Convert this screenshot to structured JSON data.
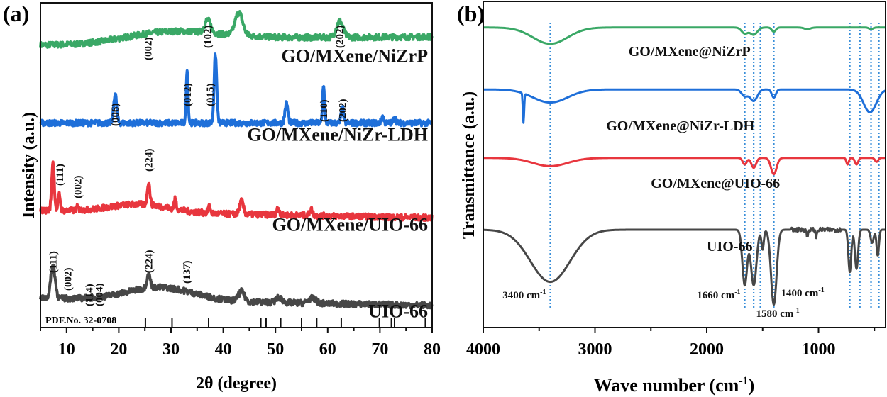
{
  "chart_data": [
    {
      "panel_label": "(a)",
      "type": "line",
      "title": "",
      "xlabel": "2θ (degree)",
      "ylabel": "Intensity (a.u.)",
      "xlim": [
        5,
        80
      ],
      "x_ticks": [
        10,
        20,
        30,
        40,
        50,
        60,
        70,
        80
      ],
      "grid": false,
      "reference": {
        "label": "PDF.No. 32-0708",
        "positions": [
          25.1,
          30.2,
          37.2,
          47.2,
          48.2,
          51.0,
          55.0,
          57.9,
          62.6,
          69.9,
          72.2,
          72.8,
          78.7
        ]
      },
      "series": [
        {
          "name": "GO/MXene/NiZrP",
          "color": "#3aa866",
          "baseline": 0.87,
          "peaks": [
            [
              37.0,
              0.04,
              0.8
            ],
            [
              43.0,
              0.07,
              1.0
            ],
            [
              62.3,
              0.05,
              0.9
            ]
          ],
          "hump": [
            [
              30,
              0.03,
              12
            ]
          ],
          "annotations": [
            {
              "x": 25.6,
              "text": "(002)"
            },
            {
              "x": 37.0,
              "text": "(102)"
            },
            {
              "x": 62.3,
              "text": "(202)"
            }
          ]
        },
        {
          "name": "GO/MXene/NiZr-LDH",
          "color": "#1e6fd9",
          "baseline": 0.63,
          "peaks": [
            [
              19.3,
              0.09,
              0.4
            ],
            [
              33.1,
              0.17,
              0.25
            ],
            [
              38.5,
              0.21,
              0.35
            ],
            [
              52.1,
              0.06,
              0.4
            ],
            [
              59.2,
              0.12,
              0.25
            ],
            [
              62.8,
              0.05,
              0.3
            ],
            [
              70.5,
              0.02,
              0.3
            ],
            [
              72.8,
              0.02,
              0.3
            ]
          ],
          "hump": [],
          "annotations": [
            {
              "x": 19.3,
              "text": "(006)"
            },
            {
              "x": 33.1,
              "text": "(012)"
            },
            {
              "x": 37.5,
              "text": "(015)"
            },
            {
              "x": 59.2,
              "text": "(110)"
            },
            {
              "x": 62.8,
              "text": "(202)"
            }
          ]
        },
        {
          "name": "GO/MXene/UIO-66",
          "color": "#e8363e",
          "baseline": 0.35,
          "peaks": [
            [
              7.4,
              0.15,
              0.35
            ],
            [
              8.6,
              0.05,
              0.3
            ],
            [
              12.1,
              0.01,
              0.3
            ],
            [
              25.7,
              0.07,
              0.35
            ],
            [
              30.8,
              0.03,
              0.3
            ],
            [
              37.3,
              0.02,
              0.3
            ],
            [
              43.5,
              0.04,
              0.5
            ],
            [
              50.5,
              0.02,
              0.4
            ],
            [
              56.8,
              0.02,
              0.4
            ]
          ],
          "hump": [
            [
              24,
              0.025,
              8
            ]
          ],
          "annotations": [
            {
              "x": 8.7,
              "text": "(111)"
            },
            {
              "x": 12.1,
              "text": "(002)"
            },
            {
              "x": 25.7,
              "text": "(224)"
            }
          ]
        },
        {
          "name": "UIO-66",
          "color": "#474747",
          "baseline": 0.08,
          "peaks": [
            [
              7.4,
              0.1,
              0.6
            ],
            [
              25.7,
              0.04,
              0.5
            ],
            [
              43.5,
              0.03,
              0.8
            ],
            [
              50.7,
              0.015,
              0.8
            ],
            [
              57.0,
              0.015,
              1.0
            ]
          ],
          "hump": [
            [
              28,
              0.04,
              9
            ]
          ],
          "annotations": [
            {
              "x": 7.4,
              "text": "(111)"
            },
            {
              "x": 10.2,
              "text": "(002)"
            },
            {
              "x": 14.3,
              "text": "(114)"
            },
            {
              "x": 16.2,
              "text": "(004)"
            },
            {
              "x": 25.7,
              "text": "(224)"
            },
            {
              "x": 33.0,
              "text": "(137)"
            }
          ]
        }
      ]
    },
    {
      "panel_label": "(b)",
      "type": "line",
      "title": "",
      "xlabel": "Wave number (cm",
      "xlabel_sup": "-1",
      "xlabel_end": ")",
      "ylabel": "Transmittance (a.u.)",
      "xlim": [
        4000,
        400
      ],
      "x_ticks": [
        4000,
        3000,
        2000,
        1000
      ],
      "x_minor_ticks": [
        3500,
        2500,
        1500,
        500
      ],
      "grid": false,
      "reference_lines": [
        3400,
        1660,
        1580,
        1520,
        1400,
        720,
        630,
        530,
        460
      ],
      "annotations": [
        {
          "x": 3400,
          "text": "3400 cm",
          "sup": "-1",
          "pos": "left"
        },
        {
          "x": 1660,
          "text": "1660 cm",
          "sup": "-1",
          "pos": "left"
        },
        {
          "x": 1580,
          "text": "1580 cm",
          "sup": "-1",
          "pos": "below"
        },
        {
          "x": 1400,
          "text": "1400 cm",
          "sup": "-1",
          "pos": "right"
        }
      ],
      "series": [
        {
          "name": "GO/MXene@NiZrP",
          "color": "#3aa866",
          "label_x": 2700,
          "baseline": 0.92,
          "bands": [
            [
              3400,
              0.05,
              220
            ],
            [
              1660,
              0.018,
              40
            ],
            [
              1580,
              0.022,
              45
            ],
            [
              1400,
              0.013,
              25
            ],
            [
              1100,
              0.005,
              40
            ],
            [
              530,
              0.005,
              25
            ]
          ]
        },
        {
          "name": "GO/MXene@NiZr-LDH",
          "color": "#1e6fd9",
          "label_x": 2900,
          "baseline": 0.73,
          "bands": [
            [
              3640,
              0.09,
              8
            ],
            [
              3400,
              0.04,
              220
            ],
            [
              1660,
              0.02,
              40
            ],
            [
              1580,
              0.035,
              45
            ],
            [
              1400,
              0.025,
              25
            ],
            [
              540,
              0.07,
              80
            ]
          ]
        },
        {
          "name": "GO/MXene@UIO-66",
          "color": "#e8363e",
          "label_x": 2500,
          "baseline": 0.52,
          "bands": [
            [
              3400,
              0.025,
              220
            ],
            [
              1660,
              0.02,
              25
            ],
            [
              1580,
              0.03,
              30
            ],
            [
              1400,
              0.05,
              35
            ],
            [
              740,
              0.02,
              15
            ],
            [
              660,
              0.02,
              20
            ],
            [
              480,
              0.012,
              20
            ]
          ]
        },
        {
          "name": "UIO-66",
          "color": "#474747",
          "label_x": 2000,
          "baseline": 0.3,
          "bands": [
            [
              3400,
              0.16,
              250
            ],
            [
              1660,
              0.17,
              30
            ],
            [
              1580,
              0.17,
              35
            ],
            [
              1500,
              0.06,
              15
            ],
            [
              1400,
              0.23,
              35
            ],
            [
              1100,
              0.02,
              10
            ],
            [
              1020,
              0.02,
              10
            ],
            [
              720,
              0.13,
              18
            ],
            [
              660,
              0.12,
              20
            ],
            [
              520,
              0.04,
              20
            ],
            [
              470,
              0.08,
              15
            ]
          ]
        }
      ]
    }
  ]
}
